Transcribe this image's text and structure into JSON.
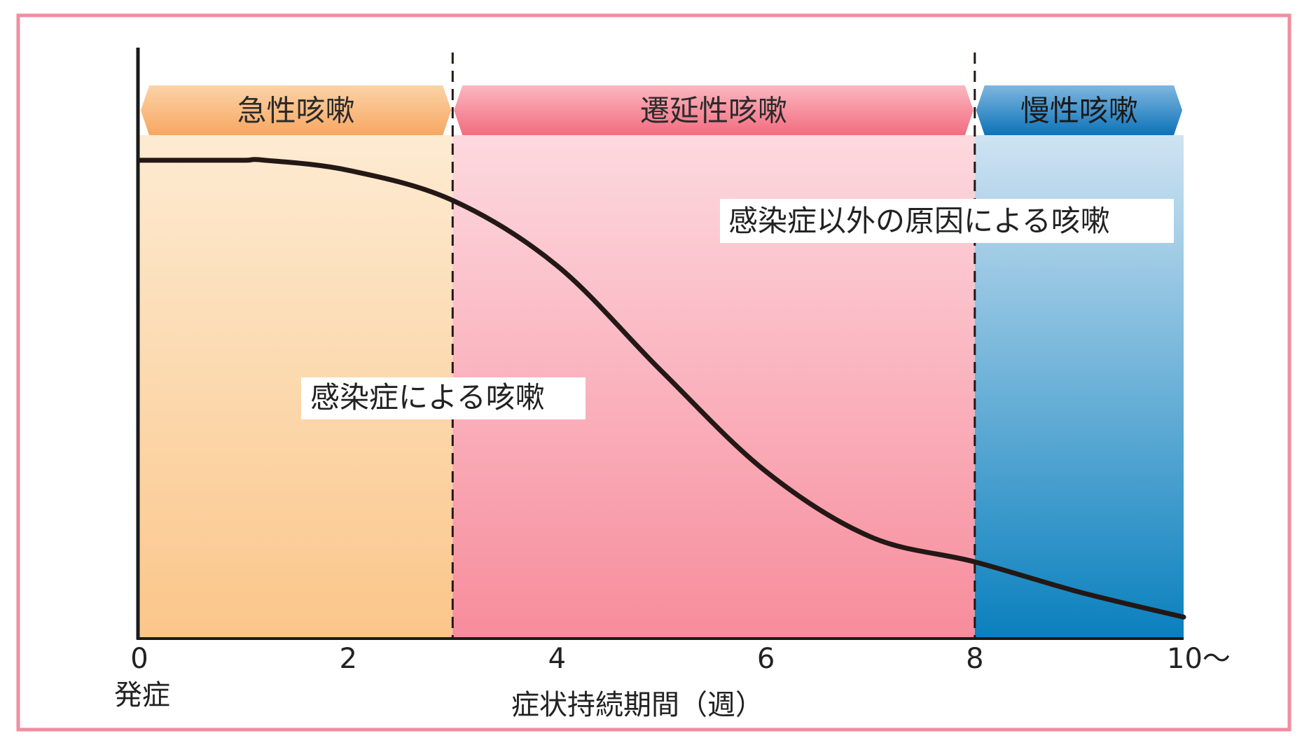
{
  "chart_data": {
    "type": "area",
    "xlabel": "症状持続期間（週）",
    "x_ticks": [
      "0",
      "2",
      "4",
      "6",
      "8",
      "10〜"
    ],
    "x_tick_values": [
      0,
      2,
      4,
      6,
      8,
      10
    ],
    "x_origin_sublabel": "発症",
    "xlim": [
      0,
      10
    ],
    "ylim": [
      0,
      1
    ],
    "phases": [
      {
        "label": "急性咳嗽",
        "start": 0,
        "end": 3,
        "color_top": "#fdebd2",
        "color_bottom": "#fbc68a",
        "tab_top": "#fcd3a6",
        "tab_bottom": "#f7a763"
      },
      {
        "label": "遷延性咳嗽",
        "start": 3,
        "end": 8,
        "color_top": "#fdd9df",
        "color_bottom": "#f78c9c",
        "tab_top": "#fbb7c0",
        "tab_bottom": "#f36c7f"
      },
      {
        "label": "慢性咳嗽",
        "start": 8,
        "end": 10,
        "color_top": "#cfe3f2",
        "color_bottom": "#0a80be",
        "tab_top": "#7fb6e0",
        "tab_bottom": "#0c73b8"
      }
    ],
    "boundaries": [
      3,
      8
    ],
    "curve": {
      "x": [
        0,
        0.5,
        1,
        1.2,
        2,
        3,
        4,
        5,
        6,
        7,
        8,
        9,
        10
      ],
      "y": [
        0.95,
        0.95,
        0.95,
        0.95,
        0.93,
        0.87,
        0.74,
        0.53,
        0.33,
        0.2,
        0.15,
        0.09,
        0.04
      ]
    },
    "annotations": [
      {
        "text": "感染症による咳嗽"
      },
      {
        "text": "感染症以外の原因による咳嗽"
      }
    ]
  },
  "colors": {
    "border": "#f18ea0",
    "axis": "#1a1a1a",
    "curve": "#231815",
    "dash": "#231815"
  }
}
